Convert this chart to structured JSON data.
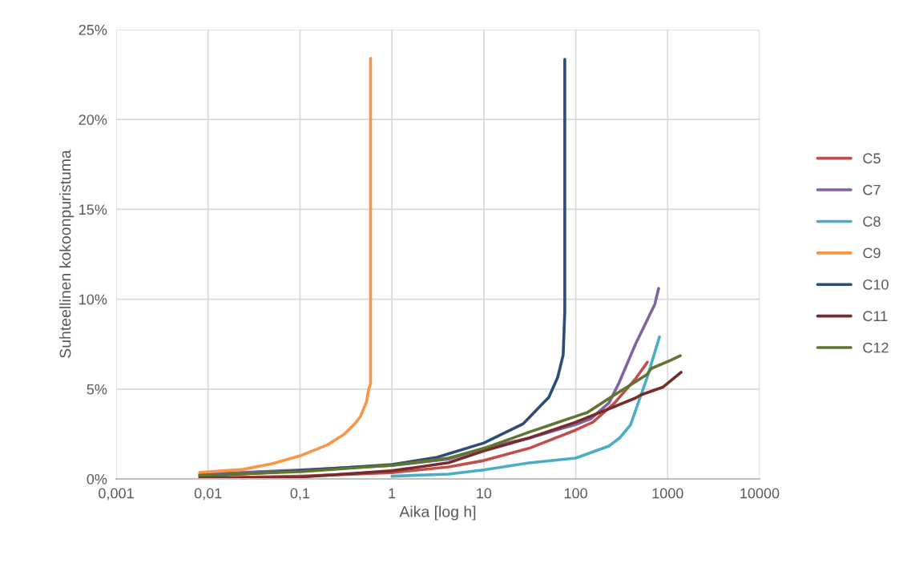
{
  "chart_data": {
    "type": "line",
    "xlabel": "Aika [log h]",
    "ylabel": "Suhteellinen kokoonpuristuma",
    "log": "x",
    "grid": true,
    "legend": "right",
    "line_style": "solid",
    "marker": "none",
    "xlim": [
      0.001,
      10000
    ],
    "xticks": [
      {
        "value": 0.001,
        "label": "0,001"
      },
      {
        "value": 0.01,
        "label": "0,01"
      },
      {
        "value": 0.1,
        "label": "0,1"
      },
      1,
      10,
      100,
      1000,
      10000
    ],
    "ylim": [
      0,
      25
    ],
    "yticks": [
      {
        "value": 0,
        "label": "0%"
      },
      {
        "value": 5,
        "label": "5%"
      },
      {
        "value": 10,
        "label": "10%"
      },
      {
        "value": 15,
        "label": "15%"
      },
      {
        "value": 20,
        "label": "20%"
      },
      {
        "value": 25,
        "label": "25%"
      }
    ],
    "series": [
      {
        "name": "C5",
        "color": "#c0504d",
        "x": [
          0.0081,
          0.1,
          1,
          4.15,
          10,
          31,
          100,
          154,
          265,
          447,
          603
        ],
        "values": [
          0.05,
          0.15,
          0.35,
          0.67,
          1.02,
          1.7,
          2.72,
          3.16,
          4.23,
          5.57,
          6.5
        ]
      },
      {
        "name": "C7",
        "color": "#8064a2",
        "x": [
          0.0081,
          0.1,
          1,
          4.15,
          10,
          31,
          100,
          145,
          230,
          299,
          447,
          723,
          798
        ],
        "values": [
          0.25,
          0.5,
          0.75,
          1.1,
          1.7,
          2.27,
          3.03,
          3.34,
          4.23,
          5.4,
          7.5,
          9.7,
          10.6
        ]
      },
      {
        "name": "C8",
        "color": "#4bacc6",
        "x": [
          1,
          4.15,
          10,
          31,
          100,
          230,
          299,
          395,
          447,
          592,
          815
        ],
        "values": [
          0.15,
          0.27,
          0.5,
          0.89,
          1.16,
          1.83,
          2.27,
          3.0,
          3.8,
          5.57,
          7.9
        ]
      },
      {
        "name": "C9",
        "color": "#f79646",
        "x": [
          0.0081,
          0.0239,
          0.05,
          0.101,
          0.2,
          0.305,
          0.4,
          0.456,
          0.53,
          0.557,
          0.586,
          0.586,
          0.586
        ],
        "values": [
          0.36,
          0.53,
          0.85,
          1.29,
          1.9,
          2.5,
          3.1,
          3.48,
          4.3,
          4.95,
          5.3,
          10,
          23.4
        ]
      },
      {
        "name": "C10",
        "color": "#2c4d75",
        "x": [
          0.0081,
          0.1,
          1,
          3.1,
          10,
          26.9,
          51,
          63.7,
          73,
          76,
          76
        ],
        "values": [
          0.15,
          0.45,
          0.8,
          1.2,
          2.0,
          3.07,
          4.55,
          5.66,
          6.9,
          9.3,
          23.35
        ]
      },
      {
        "name": "C11",
        "color": "#772c2a",
        "x": [
          0.0081,
          0.1,
          1,
          4.15,
          10,
          31,
          100,
          230,
          447,
          514,
          884,
          1400
        ],
        "values": [
          0.02,
          0.1,
          0.45,
          0.9,
          1.56,
          2.27,
          3.16,
          3.9,
          4.5,
          4.68,
          5.1,
          5.93
        ]
      },
      {
        "name": "C12",
        "color": "#5f7530",
        "x": [
          0.0081,
          0.1,
          1,
          4.15,
          10,
          31,
          60,
          100,
          134,
          265,
          447,
          592,
          667,
          1079,
          1374
        ],
        "values": [
          0.2,
          0.4,
          0.76,
          1.16,
          1.7,
          2.6,
          3.1,
          3.48,
          3.7,
          4.68,
          5.4,
          5.8,
          6.15,
          6.6,
          6.86
        ]
      }
    ]
  }
}
